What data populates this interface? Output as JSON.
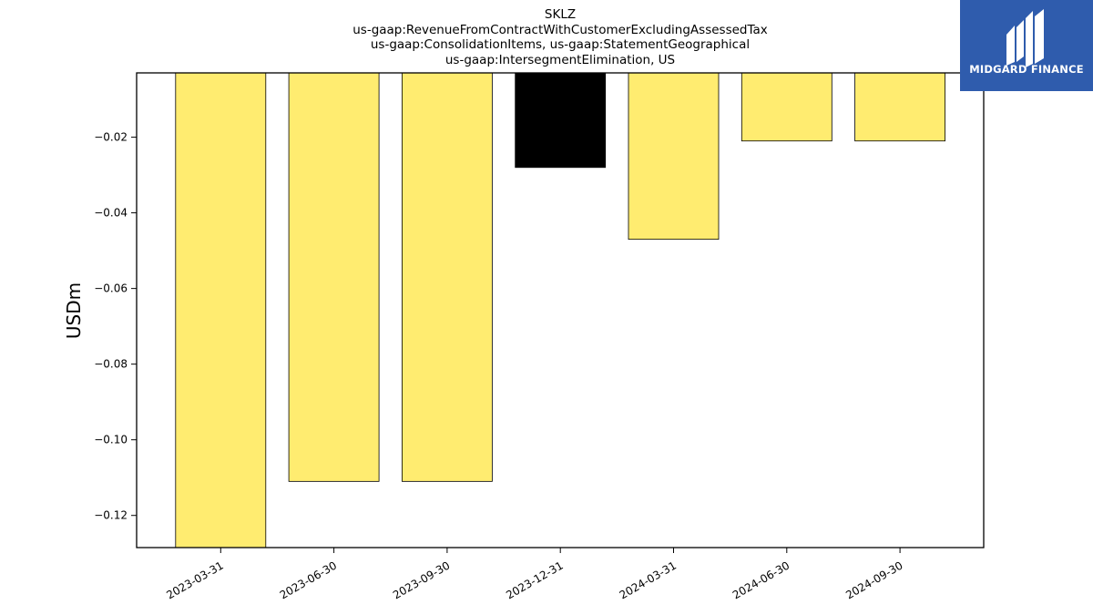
{
  "chart_data": {
    "type": "bar",
    "title_lines": [
      "SKLZ",
      "us-gaap:RevenueFromContractWithCustomerExcludingAssessedTax",
      "us-gaap:ConsolidationItems, us-gaap:StatementGeographical",
      "us-gaap:IntersegmentElimination, US"
    ],
    "ylabel": "USDm",
    "xlabel": "",
    "categories": [
      "2023-03-31",
      "2023-06-30",
      "2023-09-30",
      "2023-12-31",
      "2024-03-31",
      "2024-06-30",
      "2024-09-30"
    ],
    "values": [
      -0.129,
      -0.111,
      -0.111,
      -0.028,
      -0.047,
      -0.021,
      -0.021
    ],
    "bar_colors": [
      "#ffec70",
      "#ffec70",
      "#ffec70",
      "#000000",
      "#ffec70",
      "#ffec70",
      "#ffec70"
    ],
    "yticks": [
      -0.02,
      -0.04,
      -0.06,
      -0.08,
      -0.1,
      -0.12
    ],
    "ytick_labels": [
      "−0.02",
      "−0.04",
      "−0.06",
      "−0.08",
      "−0.10",
      "−0.12"
    ],
    "ylim": [
      -0.1285,
      -0.003
    ],
    "grid": false
  },
  "logo": {
    "text": "MIDGARD FINANCE",
    "background": "#2f5cad"
  }
}
